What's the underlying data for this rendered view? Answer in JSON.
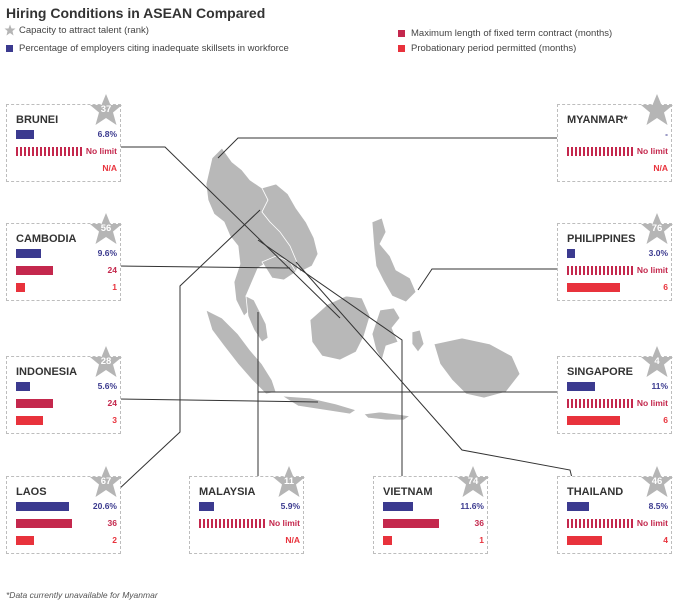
{
  "title": "Hiring Conditions in ASEAN Compared",
  "legend": [
    {
      "label": "Capacity to attract talent (rank)",
      "symbol": "star",
      "color": "#b5b5b5"
    },
    {
      "label": "Percentage of employers citing inadequate skillsets in workforce",
      "symbol": "square",
      "color": "#3b3a8f"
    },
    {
      "label": "Maximum length of fixed term contract (months)",
      "symbol": "square",
      "color": "#c4284d"
    },
    {
      "label": "Probationary period permitted (months)",
      "symbol": "square",
      "color": "#e8323c"
    }
  ],
  "colors": {
    "skills": "#3b3a8f",
    "contract": "#c4284d",
    "probation": "#e8323c",
    "map": "#b8b8b8",
    "star": "#b5b5b5"
  },
  "footnote": "*Data currently unavailable for Myanmar",
  "chart_data": {
    "type": "bar",
    "series": [
      {
        "name": "Capacity to attract talent (rank)"
      },
      {
        "name": "Percentage of employers citing inadequate skillsets in workforce",
        "unit": "%"
      },
      {
        "name": "Maximum length of fixed term contract (months)",
        "unit": "months"
      },
      {
        "name": "Probationary period permitted (months)",
        "unit": "months"
      }
    ],
    "countries": [
      {
        "name": "BRUNEI",
        "rank": "37",
        "skills": 6.8,
        "skills_label": "6.8%",
        "contract": null,
        "contract_label": "No limit",
        "probation": null,
        "probation_label": "N/A"
      },
      {
        "name": "CAMBODIA",
        "rank": "56",
        "skills": 9.6,
        "skills_label": "9.6%",
        "contract": 24,
        "contract_label": "24",
        "probation": 1,
        "probation_label": "1"
      },
      {
        "name": "INDONESIA",
        "rank": "28",
        "skills": 5.6,
        "skills_label": "5.6%",
        "contract": 24,
        "contract_label": "24",
        "probation": 3,
        "probation_label": "3"
      },
      {
        "name": "LAOS",
        "rank": "67",
        "skills": 20.6,
        "skills_label": "20.6%",
        "contract": 36,
        "contract_label": "36",
        "probation": 2,
        "probation_label": "2"
      },
      {
        "name": "MALAYSIA",
        "rank": "11",
        "skills": 5.9,
        "skills_label": "5.9%",
        "contract": null,
        "contract_label": "No limit",
        "probation": null,
        "probation_label": "N/A"
      },
      {
        "name": "VIETNAM",
        "rank": "74",
        "skills": 11.6,
        "skills_label": "11.6%",
        "contract": 36,
        "contract_label": "36",
        "probation": 1,
        "probation_label": "1"
      },
      {
        "name": "THAILAND",
        "rank": "46",
        "skills": 8.5,
        "skills_label": "8.5%",
        "contract": null,
        "contract_label": "No limit",
        "probation": 4,
        "probation_label": "4"
      },
      {
        "name": "SINGAPORE",
        "rank": "4",
        "skills": 11,
        "skills_label": "11%",
        "contract": null,
        "contract_label": "No limit",
        "probation": 6,
        "probation_label": "6"
      },
      {
        "name": "PHILIPPINES",
        "rank": "76",
        "skills": 3.0,
        "skills_label": "3.0%",
        "contract": null,
        "contract_label": "No limit",
        "probation": 6,
        "probation_label": "6"
      },
      {
        "name": "MYANMAR*",
        "rank": "",
        "skills": null,
        "skills_label": "-",
        "contract": null,
        "contract_label": "No limit",
        "probation": null,
        "probation_label": "N/A"
      }
    ],
    "scale_max": {
      "skills": 24,
      "contract": 40,
      "probation": 7
    }
  }
}
